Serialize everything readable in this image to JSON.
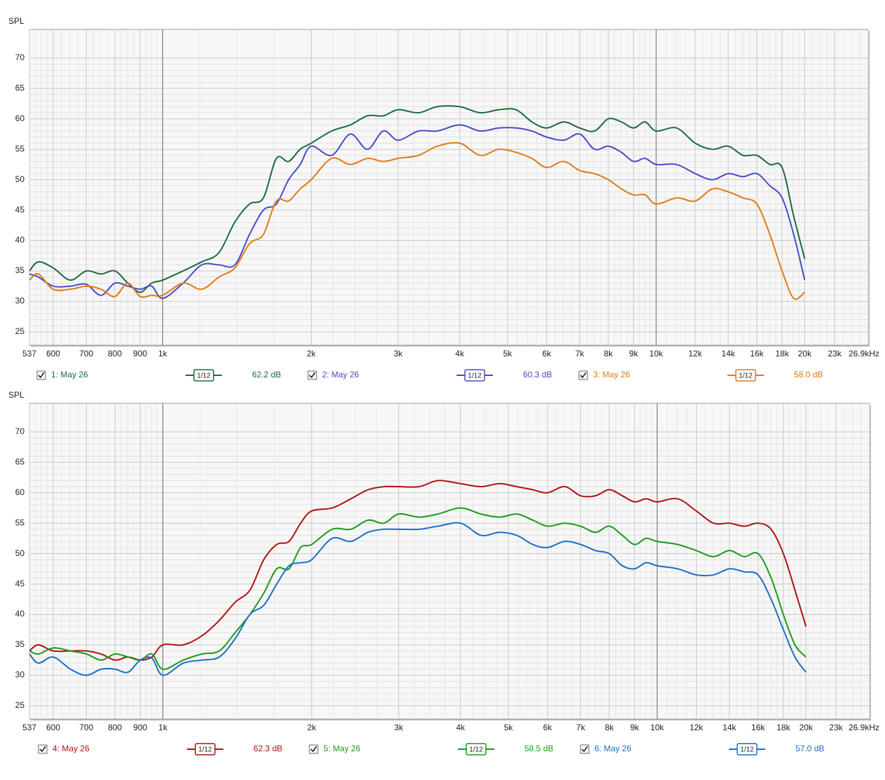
{
  "chart_data": [
    {
      "type": "line",
      "y_label": "SPL",
      "x_scale": "log",
      "grid": true,
      "xlim": [
        537,
        26900
      ],
      "ylim": [
        22.8,
        74.7
      ],
      "xticks": [
        537,
        600,
        700,
        800,
        900,
        {
          "value": 1000,
          "label": "1k"
        },
        {
          "value": 2000,
          "label": "2k"
        },
        {
          "value": 3000,
          "label": "3k"
        },
        {
          "value": 4000,
          "label": "4k"
        },
        {
          "value": 5000,
          "label": "5k"
        },
        {
          "value": 6000,
          "label": "6k"
        },
        {
          "value": 7000,
          "label": "7k"
        },
        {
          "value": 8000,
          "label": "8k"
        },
        {
          "value": 9000,
          "label": "9k"
        },
        {
          "value": 10000,
          "label": "10k"
        },
        {
          "value": 12000,
          "label": "12k"
        },
        {
          "value": 14000,
          "label": "14k"
        },
        {
          "value": 16000,
          "label": "16k"
        },
        {
          "value": 18000,
          "label": "18k"
        },
        {
          "value": 20000,
          "label": "20k"
        },
        {
          "value": 23000,
          "label": "23k"
        },
        {
          "value": 26900,
          "label": "26.9kHz"
        }
      ],
      "yticks": [
        25,
        30,
        35,
        40,
        45,
        50,
        55,
        60,
        65,
        70
      ],
      "x": [
        537,
        560,
        600,
        650,
        700,
        750,
        800,
        850,
        900,
        950,
        1000,
        1100,
        1200,
        1300,
        1400,
        1500,
        1600,
        1700,
        1800,
        1900,
        2000,
        2200,
        2400,
        2600,
        2800,
        3000,
        3300,
        3600,
        4000,
        4400,
        4800,
        5200,
        5600,
        6000,
        6500,
        7000,
        7500,
        8000,
        8500,
        9000,
        9500,
        10000,
        11000,
        12000,
        13000,
        14000,
        15000,
        16000,
        17000,
        18000,
        19000,
        20000
      ],
      "series": [
        {
          "name": "1: May 26",
          "color": "#1a6b3c",
          "checked": true,
          "smoothing": "1/12",
          "level": "62.2 dB",
          "values": [
            35,
            36.5,
            35.5,
            33.5,
            35,
            34.5,
            35,
            33,
            31.5,
            33,
            33.5,
            35,
            36.5,
            38,
            43,
            46,
            47,
            53.5,
            53,
            55,
            56,
            58,
            59,
            60.5,
            60.5,
            61.5,
            61,
            62,
            62,
            61,
            61.5,
            61.5,
            59.5,
            58.5,
            59.5,
            58.5,
            58,
            60,
            59.5,
            58.5,
            59.5,
            58,
            58.5,
            56,
            55,
            55.5,
            54,
            54,
            52.5,
            52,
            44,
            37
          ]
        },
        {
          "name": "2: May 26",
          "color": "#4a4ac8",
          "checked": true,
          "smoothing": "1/12",
          "level": "60.3 dB",
          "values": [
            34.5,
            34,
            32.5,
            32.5,
            32.8,
            31,
            33,
            32.5,
            32,
            32.5,
            30.5,
            33,
            36,
            36,
            36,
            41,
            45,
            46,
            50,
            52.5,
            55.5,
            54,
            57.5,
            55,
            58,
            56.5,
            58,
            58,
            59,
            58,
            58.5,
            58.5,
            58,
            57,
            56.5,
            57.5,
            55,
            55.5,
            54.5,
            53,
            53.5,
            52.5,
            52.5,
            51,
            50,
            51,
            50.5,
            51,
            49,
            47,
            41,
            33.5
          ]
        },
        {
          "name": "3: May 26",
          "color": "#e07a10",
          "checked": true,
          "smoothing": "1/12",
          "level": "58.0 dB",
          "values": [
            33.5,
            34.5,
            32,
            32,
            32.5,
            32,
            30.8,
            33,
            30.8,
            31,
            31,
            33,
            32,
            34,
            35.5,
            39.5,
            41,
            46.5,
            46.5,
            48.5,
            50,
            53.5,
            52.5,
            53.5,
            53,
            53.5,
            54,
            55.5,
            56,
            54,
            55,
            54.5,
            53.5,
            52,
            53,
            51.5,
            51,
            50,
            48.5,
            47.5,
            47.5,
            46,
            47,
            46.5,
            48.5,
            48,
            47,
            46,
            41,
            35,
            30.5,
            31.5
          ]
        }
      ]
    },
    {
      "type": "line",
      "y_label": "SPL",
      "x_scale": "log",
      "grid": true,
      "xlim": [
        537,
        26900
      ],
      "ylim": [
        22.8,
        74.7
      ],
      "xticks": [
        537,
        600,
        700,
        800,
        900,
        {
          "value": 1000,
          "label": "1k"
        },
        {
          "value": 2000,
          "label": "2k"
        },
        {
          "value": 3000,
          "label": "3k"
        },
        {
          "value": 4000,
          "label": "4k"
        },
        {
          "value": 5000,
          "label": "5k"
        },
        {
          "value": 6000,
          "label": "6k"
        },
        {
          "value": 7000,
          "label": "7k"
        },
        {
          "value": 8000,
          "label": "8k"
        },
        {
          "value": 9000,
          "label": "9k"
        },
        {
          "value": 10000,
          "label": "10k"
        },
        {
          "value": 12000,
          "label": "12k"
        },
        {
          "value": 14000,
          "label": "14k"
        },
        {
          "value": 16000,
          "label": "16k"
        },
        {
          "value": 18000,
          "label": "18k"
        },
        {
          "value": 20000,
          "label": "20k"
        },
        {
          "value": 23000,
          "label": "23k"
        },
        {
          "value": 26900,
          "label": "26.9kHz"
        }
      ],
      "yticks": [
        25,
        30,
        35,
        40,
        45,
        50,
        55,
        60,
        65,
        70
      ],
      "x": [
        537,
        560,
        600,
        650,
        700,
        750,
        800,
        850,
        900,
        950,
        1000,
        1100,
        1200,
        1300,
        1400,
        1500,
        1600,
        1700,
        1800,
        1900,
        2000,
        2200,
        2400,
        2600,
        2800,
        3000,
        3300,
        3600,
        4000,
        4400,
        4800,
        5200,
        5600,
        6000,
        6500,
        7000,
        7500,
        8000,
        8500,
        9000,
        9500,
        10000,
        11000,
        12000,
        13000,
        14000,
        15000,
        16000,
        17000,
        18000,
        19000,
        20000
      ],
      "series": [
        {
          "name": "4: May 26",
          "color": "#b01010",
          "checked": true,
          "smoothing": "1/12",
          "level": "62.3 dB",
          "values": [
            34,
            35,
            34,
            34,
            34,
            33.5,
            32.5,
            33,
            32.5,
            33,
            35,
            35,
            36.5,
            39,
            42,
            44,
            49,
            51.5,
            52,
            55,
            57,
            57.5,
            59,
            60.5,
            61,
            61,
            61,
            62,
            61.5,
            61,
            61.5,
            61,
            60.5,
            60,
            61,
            59.5,
            59.5,
            60.5,
            59.5,
            58.5,
            59,
            58.5,
            59,
            57,
            55,
            55,
            54.5,
            55,
            54,
            50,
            44,
            38
          ]
        },
        {
          "name": "5: May 26",
          "color": "#1a9a1a",
          "checked": true,
          "smoothing": "1/12",
          "level": "58.5 dB",
          "values": [
            34,
            33.5,
            34.5,
            34,
            33.5,
            32.5,
            33.5,
            33,
            32.5,
            33.5,
            31,
            32.5,
            33.5,
            34,
            37,
            40,
            43.5,
            47.5,
            47.5,
            51,
            51.5,
            54,
            54,
            55.5,
            55,
            56.5,
            56,
            56.5,
            57.5,
            56.5,
            56,
            56.5,
            55.5,
            54.5,
            55,
            54.5,
            53.5,
            54.5,
            53,
            51.5,
            52.5,
            52,
            51.5,
            50.5,
            49.5,
            50.5,
            49.5,
            50,
            46,
            40,
            35,
            33
          ]
        },
        {
          "name": "6: May 26",
          "color": "#1a6ec8",
          "checked": true,
          "smoothing": "1/12",
          "level": "57.0 dB",
          "values": [
            33.5,
            32,
            33,
            31,
            30,
            31,
            31,
            30.5,
            32.5,
            32.8,
            30,
            32,
            32.5,
            33,
            36,
            40,
            41.5,
            45,
            48,
            48.5,
            49,
            52.5,
            52,
            53.5,
            54,
            54,
            54,
            54.5,
            55,
            53,
            53.5,
            53,
            51.5,
            51,
            52,
            51.5,
            50.5,
            50,
            48,
            47.5,
            48.5,
            48,
            47.5,
            46.5,
            46.5,
            47.5,
            47,
            46.5,
            42.5,
            37.5,
            33,
            30.5
          ]
        }
      ]
    }
  ]
}
